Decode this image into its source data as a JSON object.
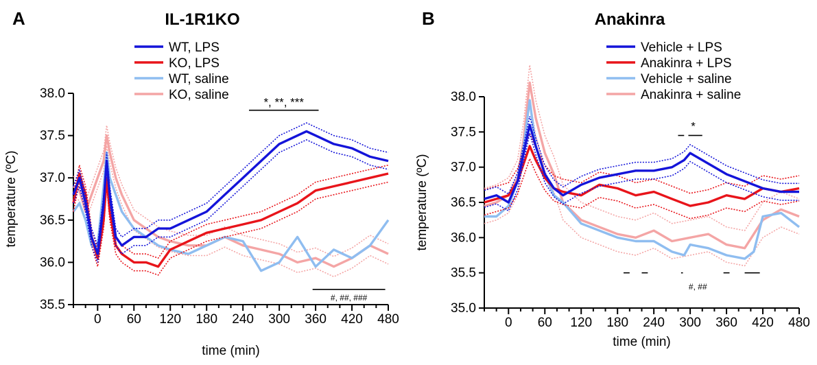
{
  "chart_data": [
    {
      "panel_letter": "A",
      "title": "IL-1R1KO",
      "type": "line",
      "xlabel": "time (min)",
      "ylabel": "temperature (ºC)",
      "xlim": [
        -40,
        480
      ],
      "ylim": [
        35.5,
        38.0
      ],
      "xticks": [
        0,
        60,
        120,
        180,
        240,
        300,
        360,
        420,
        480
      ],
      "yticks": [
        35.5,
        36.0,
        36.5,
        37.0,
        37.5,
        38.0
      ],
      "ytick_labels": [
        "35.5",
        "36.0",
        "36.5",
        "37.0",
        "37.5",
        "38.0"
      ],
      "legend": "top-left",
      "series": [
        {
          "name": "WT, LPS",
          "color": "#1414d9",
          "error": 0.1,
          "x": [
            -40,
            -30,
            -20,
            -10,
            0,
            10,
            15,
            20,
            30,
            40,
            60,
            80,
            100,
            120,
            150,
            180,
            210,
            240,
            270,
            300,
            330,
            345,
            360,
            390,
            420,
            450,
            480
          ],
          "y": [
            36.8,
            37.0,
            36.7,
            36.3,
            36.1,
            36.7,
            37.2,
            36.8,
            36.3,
            36.2,
            36.3,
            36.3,
            36.4,
            36.4,
            36.5,
            36.6,
            36.8,
            37.0,
            37.2,
            37.4,
            37.5,
            37.55,
            37.5,
            37.4,
            37.35,
            37.25,
            37.2
          ]
        },
        {
          "name": "KO, LPS",
          "color": "#e8141a",
          "error": 0.1,
          "x": [
            -40,
            -30,
            -20,
            -10,
            0,
            10,
            15,
            20,
            30,
            40,
            60,
            80,
            100,
            120,
            150,
            180,
            210,
            240,
            270,
            300,
            330,
            360,
            390,
            420,
            450,
            480
          ],
          "y": [
            36.7,
            37.05,
            36.8,
            36.3,
            36.05,
            36.5,
            37.0,
            36.6,
            36.2,
            36.1,
            36.0,
            36.0,
            35.95,
            36.15,
            36.25,
            36.35,
            36.4,
            36.45,
            36.5,
            36.6,
            36.7,
            36.85,
            36.9,
            36.95,
            37.0,
            37.05
          ]
        },
        {
          "name": "WT, saline",
          "color": "#8fbdf0",
          "x": [
            -40,
            -30,
            -20,
            -10,
            0,
            10,
            15,
            20,
            30,
            40,
            60,
            80,
            100,
            120,
            150,
            180,
            210,
            240,
            270,
            300,
            330,
            360,
            390,
            420,
            450,
            480
          ],
          "y": [
            36.6,
            36.7,
            36.5,
            36.2,
            36.2,
            36.9,
            37.3,
            37.0,
            36.8,
            36.6,
            36.4,
            36.3,
            36.2,
            36.15,
            36.1,
            36.2,
            36.3,
            36.25,
            35.9,
            36.0,
            36.3,
            35.95,
            36.15,
            36.05,
            36.2,
            36.5
          ]
        },
        {
          "name": "KO, saline",
          "color": "#f4a5a5",
          "error": 0.12,
          "x": [
            -40,
            -30,
            -20,
            -10,
            0,
            10,
            15,
            20,
            30,
            40,
            60,
            80,
            100,
            120,
            150,
            180,
            210,
            240,
            270,
            300,
            330,
            360,
            390,
            420,
            450,
            480
          ],
          "y": [
            36.9,
            36.85,
            36.6,
            36.8,
            37.0,
            37.2,
            37.5,
            37.3,
            37.0,
            36.8,
            36.5,
            36.4,
            36.3,
            36.25,
            36.2,
            36.2,
            36.3,
            36.2,
            36.15,
            36.1,
            36.0,
            36.05,
            35.95,
            36.05,
            36.2,
            36.1
          ]
        }
      ],
      "annotations": [
        {
          "text": "*, **, ***",
          "x1": 250,
          "x2": 365,
          "y": 37.8,
          "size": "large"
        },
        {
          "text": "#, ##, ###",
          "x1": 355,
          "x2": 475,
          "y": 35.68,
          "size": "small"
        }
      ]
    },
    {
      "panel_letter": "B",
      "title": "Anakinra",
      "type": "line",
      "xlabel": "time (min)",
      "ylabel": "temperature (ºC)",
      "xlim": [
        -40,
        480
      ],
      "ylim": [
        35.0,
        38.0
      ],
      "xticks": [
        0,
        60,
        120,
        180,
        240,
        300,
        360,
        420,
        480
      ],
      "yticks": [
        35.0,
        35.5,
        36.0,
        36.5,
        37.0,
        37.5,
        38.0
      ],
      "ytick_labels": [
        "35.0",
        "35.5",
        "36.0",
        "36.5",
        "37.0",
        "37.5",
        "38.0"
      ],
      "legend": "top-right",
      "series": [
        {
          "name": "Vehicle + LPS",
          "color": "#1414d9",
          "error": 0.12,
          "x": [
            -40,
            -20,
            0,
            15,
            25,
            35,
            45,
            60,
            75,
            90,
            120,
            150,
            180,
            210,
            240,
            270,
            290,
            300,
            320,
            330,
            360,
            390,
            420,
            450,
            480
          ],
          "y": [
            36.55,
            36.6,
            36.5,
            36.8,
            37.2,
            37.6,
            37.3,
            36.9,
            36.7,
            36.6,
            36.75,
            36.85,
            36.9,
            36.95,
            36.95,
            37.0,
            37.1,
            37.2,
            37.1,
            37.05,
            36.9,
            36.8,
            36.7,
            36.65,
            36.65
          ]
        },
        {
          "name": "Anakinra + LPS",
          "color": "#e8141a",
          "error": 0.18,
          "x": [
            -40,
            -20,
            0,
            15,
            25,
            35,
            45,
            60,
            75,
            90,
            120,
            150,
            180,
            210,
            240,
            270,
            300,
            330,
            360,
            390,
            420,
            450,
            480
          ],
          "y": [
            36.5,
            36.55,
            36.6,
            36.8,
            37.05,
            37.3,
            37.1,
            36.85,
            36.7,
            36.65,
            36.6,
            36.75,
            36.7,
            36.6,
            36.65,
            36.55,
            36.45,
            36.5,
            36.6,
            36.55,
            36.7,
            36.65,
            36.7
          ]
        },
        {
          "name": "Vehicle + saline",
          "color": "#8fbdf0",
          "x": [
            -40,
            -20,
            0,
            15,
            25,
            35,
            45,
            60,
            75,
            90,
            120,
            150,
            180,
            210,
            240,
            270,
            290,
            300,
            330,
            360,
            390,
            405,
            420,
            450,
            480
          ],
          "y": [
            36.3,
            36.3,
            36.45,
            36.8,
            37.3,
            37.95,
            37.3,
            36.9,
            36.6,
            36.5,
            36.2,
            36.1,
            36.0,
            35.95,
            35.95,
            35.8,
            35.75,
            35.9,
            35.85,
            35.75,
            35.7,
            35.8,
            36.3,
            36.35,
            36.15
          ]
        },
        {
          "name": "Anakinra + saline",
          "color": "#f4a5a5",
          "error": 0.25,
          "x": [
            -40,
            -20,
            0,
            15,
            25,
            35,
            45,
            60,
            75,
            90,
            120,
            150,
            180,
            210,
            240,
            270,
            300,
            330,
            360,
            390,
            420,
            450,
            480
          ],
          "y": [
            36.45,
            36.5,
            36.6,
            36.85,
            37.4,
            38.2,
            37.7,
            37.2,
            36.9,
            36.5,
            36.25,
            36.15,
            36.05,
            36.0,
            36.1,
            35.95,
            36.0,
            36.05,
            35.9,
            35.85,
            36.25,
            36.4,
            36.3
          ]
        }
      ],
      "annotations": [
        {
          "text": "*",
          "segments": [
            [
              280,
              290
            ],
            [
              297,
              320
            ]
          ],
          "y": 37.45,
          "size": "large"
        },
        {
          "text": "#, ##",
          "segments": [
            [
              190,
              200
            ],
            [
              220,
              230
            ],
            [
              285,
              288
            ],
            [
              355,
              365
            ],
            [
              390,
              415
            ]
          ],
          "y": 35.5,
          "label_y": 35.32,
          "size": "small"
        }
      ]
    }
  ]
}
